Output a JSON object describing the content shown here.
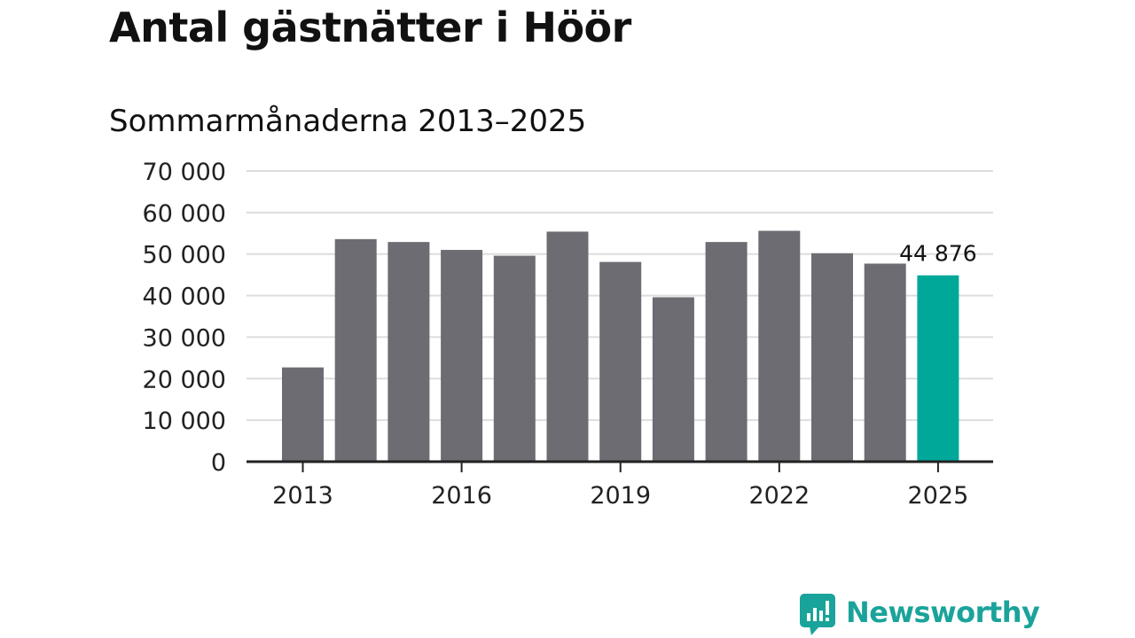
{
  "header": {
    "title": "Antal gästnätter i Höör",
    "subtitle": "Sommarmånaderna 2013–2025"
  },
  "brand": {
    "name": "Newsworthy"
  },
  "colors": {
    "bar": "#6d6c73",
    "highlight": "#00a89a",
    "grid": "#dddddd",
    "axis": "#222222",
    "brand": "#1aa39a"
  },
  "chart_data": {
    "type": "bar",
    "title": "Antal gästnätter i Höör",
    "subtitle": "Sommarmånaderna 2013–2025",
    "categories": [
      "2013",
      "2014",
      "2015",
      "2016",
      "2017",
      "2018",
      "2019",
      "2020",
      "2021",
      "2022",
      "2023",
      "2024",
      "2025"
    ],
    "values": [
      22700,
      53600,
      52900,
      51000,
      49600,
      55400,
      48100,
      39600,
      52900,
      55600,
      50200,
      47700,
      44876
    ],
    "ylim": [
      0,
      70000
    ],
    "yticks": [
      "0",
      "10 000",
      "20 000",
      "30 000",
      "40 000",
      "50 000",
      "60 000",
      "70 000"
    ],
    "xtick_labels": [
      "2013",
      "2016",
      "2019",
      "2022",
      "2025"
    ],
    "highlight_index": 12,
    "highlight_label": "44 876",
    "grid": true
  }
}
